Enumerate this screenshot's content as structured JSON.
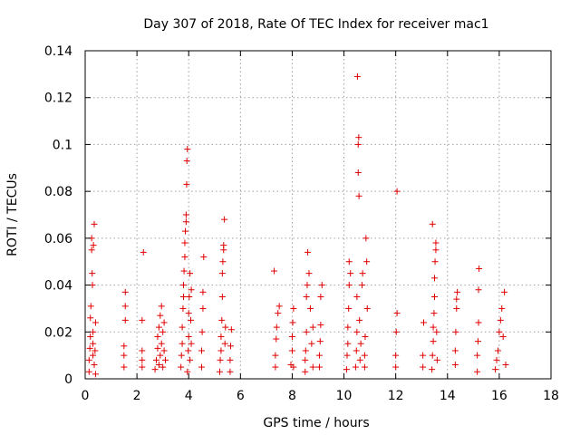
{
  "chart_data": {
    "type": "scatter",
    "title": "Day 307 of 2018, Rate Of TEC Index for receiver mac1",
    "xlabel": "GPS time / hours",
    "ylabel": "ROTI / TECUs",
    "xlim": [
      0,
      18
    ],
    "ylim": [
      0,
      0.14
    ],
    "xticks": [
      0,
      2,
      4,
      6,
      8,
      10,
      12,
      14,
      16,
      18
    ],
    "xtick_labels": [
      "0",
      "2",
      "4",
      "6",
      "8",
      "10",
      "12",
      "14",
      "16",
      "18"
    ],
    "yticks": [
      0,
      0.02,
      0.04,
      0.06,
      0.08,
      0.1,
      0.12,
      0.14
    ],
    "ytick_labels": [
      "0",
      "0.02",
      "0.04",
      "0.06",
      "0.08",
      "0.1",
      "0.12",
      "0.14"
    ],
    "grid": true,
    "marker": "+",
    "color": "#e00000",
    "series": [
      {
        "name": "ROTI",
        "points": [
          [
            0.15,
            0.003
          ],
          [
            0.15,
            0.008
          ],
          [
            0.18,
            0.013
          ],
          [
            0.2,
            0.018
          ],
          [
            0.2,
            0.026
          ],
          [
            0.22,
            0.031
          ],
          [
            0.25,
            0.055
          ],
          [
            0.25,
            0.06
          ],
          [
            0.27,
            0.045
          ],
          [
            0.28,
            0.04
          ],
          [
            0.3,
            0.01
          ],
          [
            0.3,
            0.015
          ],
          [
            0.3,
            0.02
          ],
          [
            0.32,
            0.057
          ],
          [
            0.35,
            0.066
          ],
          [
            0.35,
            0.006
          ],
          [
            0.38,
            0.012
          ],
          [
            0.4,
            0.002
          ],
          [
            0.4,
            0.024
          ],
          [
            1.5,
            0.005
          ],
          [
            1.5,
            0.01
          ],
          [
            1.5,
            0.014
          ],
          [
            1.55,
            0.025
          ],
          [
            1.55,
            0.031
          ],
          [
            1.55,
            0.037
          ],
          [
            2.2,
            0.005
          ],
          [
            2.2,
            0.008
          ],
          [
            2.2,
            0.012
          ],
          [
            2.2,
            0.025
          ],
          [
            2.25,
            0.054
          ],
          [
            2.7,
            0.004
          ],
          [
            2.75,
            0.008
          ],
          [
            2.8,
            0.013
          ],
          [
            2.8,
            0.018
          ],
          [
            2.85,
            0.006
          ],
          [
            2.85,
            0.022
          ],
          [
            2.9,
            0.01
          ],
          [
            2.9,
            0.027
          ],
          [
            2.95,
            0.015
          ],
          [
            2.95,
            0.031
          ],
          [
            3.0,
            0.005
          ],
          [
            3.0,
            0.02
          ],
          [
            3.05,
            0.012
          ],
          [
            3.05,
            0.024
          ],
          [
            3.1,
            0.008
          ],
          [
            3.7,
            0.005
          ],
          [
            3.72,
            0.01
          ],
          [
            3.75,
            0.015
          ],
          [
            3.75,
            0.022
          ],
          [
            3.78,
            0.03
          ],
          [
            3.8,
            0.035
          ],
          [
            3.8,
            0.04
          ],
          [
            3.82,
            0.046
          ],
          [
            3.85,
            0.052
          ],
          [
            3.85,
            0.058
          ],
          [
            3.87,
            0.063
          ],
          [
            3.9,
            0.067
          ],
          [
            3.9,
            0.07
          ],
          [
            3.92,
            0.083
          ],
          [
            3.93,
            0.093
          ],
          [
            3.95,
            0.098
          ],
          [
            3.95,
            0.003
          ],
          [
            3.98,
            0.012
          ],
          [
            4.0,
            0.018
          ],
          [
            4.0,
            0.028
          ],
          [
            4.02,
            0.035
          ],
          [
            4.05,
            0.045
          ],
          [
            4.05,
            0.008
          ],
          [
            4.08,
            0.025
          ],
          [
            4.1,
            0.015
          ],
          [
            4.1,
            0.038
          ],
          [
            4.5,
            0.005
          ],
          [
            4.5,
            0.012
          ],
          [
            4.52,
            0.02
          ],
          [
            4.55,
            0.03
          ],
          [
            4.55,
            0.037
          ],
          [
            4.58,
            0.052
          ],
          [
            5.2,
            0.003
          ],
          [
            5.22,
            0.008
          ],
          [
            5.25,
            0.012
          ],
          [
            5.25,
            0.018
          ],
          [
            5.28,
            0.025
          ],
          [
            5.3,
            0.035
          ],
          [
            5.3,
            0.045
          ],
          [
            5.32,
            0.05
          ],
          [
            5.35,
            0.055
          ],
          [
            5.35,
            0.057
          ],
          [
            5.38,
            0.068
          ],
          [
            5.4,
            0.015
          ],
          [
            5.42,
            0.022
          ],
          [
            5.6,
            0.003
          ],
          [
            5.6,
            0.008
          ],
          [
            5.62,
            0.014
          ],
          [
            5.65,
            0.021
          ],
          [
            7.3,
            0.046
          ],
          [
            7.35,
            0.005
          ],
          [
            7.35,
            0.01
          ],
          [
            7.38,
            0.017
          ],
          [
            7.4,
            0.022
          ],
          [
            7.45,
            0.028
          ],
          [
            7.5,
            0.031
          ],
          [
            7.95,
            0.006
          ],
          [
            8.0,
            0.012
          ],
          [
            8.0,
            0.018
          ],
          [
            8.02,
            0.024
          ],
          [
            8.05,
            0.03
          ],
          [
            8.05,
            0.005
          ],
          [
            8.5,
            0.003
          ],
          [
            8.5,
            0.008
          ],
          [
            8.52,
            0.012
          ],
          [
            8.55,
            0.02
          ],
          [
            8.55,
            0.035
          ],
          [
            8.58,
            0.04
          ],
          [
            8.6,
            0.054
          ],
          [
            8.65,
            0.045
          ],
          [
            8.7,
            0.03
          ],
          [
            8.75,
            0.015
          ],
          [
            8.8,
            0.005
          ],
          [
            8.8,
            0.022
          ],
          [
            9.05,
            0.005
          ],
          [
            9.05,
            0.01
          ],
          [
            9.08,
            0.016
          ],
          [
            9.1,
            0.023
          ],
          [
            9.1,
            0.035
          ],
          [
            9.15,
            0.04
          ],
          [
            10.1,
            0.004
          ],
          [
            10.12,
            0.01
          ],
          [
            10.15,
            0.015
          ],
          [
            10.15,
            0.022
          ],
          [
            10.18,
            0.03
          ],
          [
            10.2,
            0.04
          ],
          [
            10.2,
            0.05
          ],
          [
            10.25,
            0.045
          ],
          [
            10.45,
            0.005
          ],
          [
            10.48,
            0.012
          ],
          [
            10.5,
            0.02
          ],
          [
            10.5,
            0.035
          ],
          [
            10.55,
            0.088
          ],
          [
            10.55,
            0.1
          ],
          [
            10.57,
            0.103
          ],
          [
            10.58,
            0.078
          ],
          [
            10.52,
            0.129
          ],
          [
            10.6,
            0.025
          ],
          [
            10.62,
            0.008
          ],
          [
            10.65,
            0.015
          ],
          [
            10.7,
            0.04
          ],
          [
            10.72,
            0.045
          ],
          [
            10.8,
            0.005
          ],
          [
            10.8,
            0.01
          ],
          [
            10.82,
            0.018
          ],
          [
            10.85,
            0.06
          ],
          [
            10.88,
            0.05
          ],
          [
            10.9,
            0.03
          ],
          [
            12.0,
            0.005
          ],
          [
            12.0,
            0.01
          ],
          [
            12.02,
            0.02
          ],
          [
            12.05,
            0.028
          ],
          [
            12.05,
            0.08
          ],
          [
            13.05,
            0.005
          ],
          [
            13.05,
            0.01
          ],
          [
            13.08,
            0.024
          ],
          [
            13.4,
            0.004
          ],
          [
            13.42,
            0.01
          ],
          [
            13.45,
            0.016
          ],
          [
            13.45,
            0.022
          ],
          [
            13.48,
            0.028
          ],
          [
            13.5,
            0.035
          ],
          [
            13.5,
            0.043
          ],
          [
            13.52,
            0.05
          ],
          [
            13.55,
            0.055
          ],
          [
            13.55,
            0.058
          ],
          [
            13.42,
            0.066
          ],
          [
            13.58,
            0.02
          ],
          [
            13.6,
            0.008
          ],
          [
            14.3,
            0.006
          ],
          [
            14.3,
            0.012
          ],
          [
            14.32,
            0.02
          ],
          [
            14.35,
            0.03
          ],
          [
            14.35,
            0.034
          ],
          [
            14.38,
            0.037
          ],
          [
            15.15,
            0.003
          ],
          [
            15.15,
            0.01
          ],
          [
            15.18,
            0.016
          ],
          [
            15.2,
            0.024
          ],
          [
            15.2,
            0.038
          ],
          [
            15.22,
            0.047
          ],
          [
            15.85,
            0.004
          ],
          [
            15.9,
            0.008
          ],
          [
            15.95,
            0.012
          ],
          [
            16.0,
            0.02
          ],
          [
            16.05,
            0.025
          ],
          [
            16.1,
            0.03
          ],
          [
            16.15,
            0.018
          ],
          [
            16.2,
            0.037
          ],
          [
            16.25,
            0.006
          ]
        ]
      }
    ]
  }
}
